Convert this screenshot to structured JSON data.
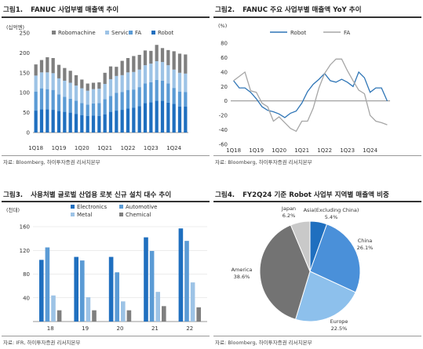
{
  "panels": [
    {
      "num": "그림1.",
      "title": "FANUC 사업부별 매출액 추이",
      "unit": "(십억엔)",
      "source": "자료: Bloomberg, 하이투자증권 리서치본부"
    },
    {
      "num": "그림2.",
      "title": "FANUC 주요 사업부별 매출액 YoY 추이",
      "unit": "(%)",
      "source": "자료: Bloomberg, 하이투자증권 리서치본부"
    },
    {
      "num": "그림3.",
      "title": "사용처별 글로벌 산업용 로봇 신규 설치 대수 추이",
      "unit": "(천대)",
      "source": "자료: IFR, 하이투자증권 리서치본부"
    },
    {
      "num": "그림4.",
      "title": "FY2Q24 기준 Robot 사업부 지역별 매출액 비중",
      "unit": "",
      "source": "자료: Bloomberg, 하이투자증권 리서치본부"
    }
  ],
  "colors": {
    "robomachine": "#7f7f7f",
    "service": "#9dc3e6",
    "fa": "#5b9bd5",
    "robot": "#1f6fbf",
    "yoy_robot": "#2e75b6",
    "yoy_fa": "#a6a6a6",
    "electronics": "#1f6fbf",
    "automotive": "#5b9bd5",
    "metal": "#9dc3e6",
    "chemical": "#7f7f7f",
    "pie_asia": "#1f6fbf",
    "pie_china": "#4a90d9",
    "pie_europe": "#8dc0ec",
    "pie_america": "#737373",
    "pie_japan": "#c9c9c9"
  },
  "chart_data": [
    {
      "type": "bar",
      "stacked": true,
      "title": "FANUC 사업부별 매출액 추이",
      "ylabel": "(십억엔)",
      "ylim": [
        0,
        250
      ],
      "yticks": [
        0,
        50,
        100,
        150,
        200,
        250
      ],
      "x_tick_labels": [
        "1Q18",
        "1Q19",
        "1Q20",
        "1Q21",
        "1Q22",
        "1Q23",
        "1Q24"
      ],
      "x_tick_index": [
        0,
        4,
        8,
        12,
        16,
        20,
        24
      ],
      "legend": [
        "Robomachine",
        "Service",
        "FA",
        "Robot"
      ],
      "series": [
        {
          "name": "Robot",
          "values": [
            55,
            58,
            58,
            57,
            54,
            52,
            50,
            47,
            44,
            42,
            43,
            42,
            46,
            52,
            55,
            57,
            60,
            62,
            66,
            74,
            76,
            80,
            80,
            75,
            72,
            65,
            65
          ]
        },
        {
          "name": "FA",
          "values": [
            48,
            53,
            51,
            50,
            42,
            38,
            35,
            33,
            30,
            28,
            30,
            32,
            38,
            40,
            45,
            45,
            47,
            46,
            48,
            49,
            50,
            52,
            50,
            48,
            40,
            38,
            37
          ]
        },
        {
          "name": "Service",
          "values": [
            40,
            40,
            42,
            42,
            40,
            40,
            40,
            38,
            37,
            35,
            36,
            36,
            38,
            42,
            42,
            42,
            44,
            44,
            44,
            46,
            47,
            47,
            47,
            46,
            46,
            47,
            46
          ]
        },
        {
          "name": "Robomachine",
          "values": [
            28,
            31,
            38,
            38,
            34,
            32,
            30,
            26,
            22,
            18,
            16,
            16,
            28,
            32,
            23,
            36,
            36,
            40,
            37,
            37,
            32,
            41,
            35,
            38,
            46,
            48,
            48
          ]
        }
      ]
    },
    {
      "type": "line",
      "title": "FANUC 주요 사업부별 매출액 YoY 추이",
      "ylabel": "(%)",
      "ylim": [
        -60,
        80
      ],
      "yticks": [
        -60,
        -40,
        -20,
        0,
        20,
        40,
        60,
        80
      ],
      "x_tick_labels": [
        "1Q18",
        "1Q19",
        "1Q20",
        "1Q21",
        "1Q22",
        "1Q23",
        "1Q24"
      ],
      "x_tick_index": [
        0,
        4,
        8,
        12,
        16,
        20,
        24
      ],
      "legend": [
        "Robot",
        "FA"
      ],
      "series": [
        {
          "name": "Robot",
          "values": [
            28,
            18,
            18,
            12,
            3,
            -8,
            -13,
            -15,
            -18,
            -23,
            -17,
            -14,
            -3,
            13,
            23,
            30,
            38,
            28,
            26,
            30,
            26,
            20,
            40,
            32,
            12,
            18,
            18,
            0
          ]
        },
        {
          "name": "FA",
          "values": [
            28,
            34,
            40,
            14,
            12,
            -3,
            -8,
            -28,
            -22,
            -30,
            -38,
            -42,
            -28,
            -28,
            -10,
            18,
            38,
            50,
            58,
            58,
            42,
            28,
            15,
            10,
            -20,
            -28,
            -30,
            -33
          ]
        }
      ]
    },
    {
      "type": "bar",
      "title": "사용처별 글로벌 산업용 로봇 신규 설치 대수 추이",
      "ylabel": "(천대)",
      "ylim": [
        0,
        160
      ],
      "yticks": [
        40,
        80,
        120,
        160
      ],
      "categories": [
        "18",
        "19",
        "20",
        "21",
        "22"
      ],
      "series": [
        {
          "name": "Electronics",
          "values": [
            104,
            109,
            109,
            142,
            157
          ]
        },
        {
          "name": "Automotive",
          "values": [
            125,
            103,
            83,
            119,
            136
          ]
        },
        {
          "name": "Metal",
          "values": [
            44,
            41,
            34,
            50,
            66
          ]
        },
        {
          "name": "Chemical",
          "values": [
            19,
            19,
            19,
            26,
            24
          ]
        }
      ]
    },
    {
      "type": "pie",
      "title": "FY2Q24 기준 Robot 사업부 지역별 매출액 비중",
      "slices": [
        {
          "label": "Asia(Excluding China)",
          "value": 5.4,
          "value_label": "5.4%"
        },
        {
          "label": "China",
          "value": 26.1,
          "value_label": "26.1%"
        },
        {
          "label": "Europe",
          "value": 22.5,
          "value_label": "22.5%"
        },
        {
          "label": "America",
          "value": 38.6,
          "value_label": "38.6%"
        },
        {
          "label": "Japan",
          "value": 6.2,
          "value_label": "6.2%"
        }
      ]
    }
  ]
}
